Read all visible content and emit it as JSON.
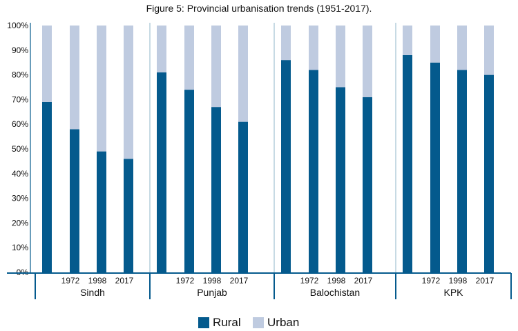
{
  "chart_data": {
    "type": "bar",
    "stacked": true,
    "title": "Figure 5: Provincial urbanisation trends (1951-2017).",
    "ylim": [
      0,
      100
    ],
    "y_ticks": [
      "0%",
      "10%",
      "20%",
      "30%",
      "40%",
      "50%",
      "60%",
      "70%",
      "80%",
      "90%",
      "100%"
    ],
    "bars_per_group": 4,
    "year_labels": [
      "",
      "1972",
      "1998",
      "2017"
    ],
    "groups": [
      "Sindh",
      "Punjab",
      "Balochistan",
      "KPK"
    ],
    "series": [
      {
        "name": "Rural",
        "color": "#045a8d",
        "values": [
          [
            69,
            58,
            49,
            46
          ],
          [
            81,
            74,
            67,
            61
          ],
          [
            86,
            82,
            75,
            71
          ],
          [
            88,
            85,
            82,
            80
          ]
        ]
      },
      {
        "name": "Urban",
        "color": "#bfcbe0",
        "values": [
          [
            31,
            42,
            51,
            54
          ],
          [
            19,
            26,
            33,
            39
          ],
          [
            14,
            18,
            25,
            29
          ],
          [
            12,
            15,
            18,
            20
          ]
        ]
      }
    ],
    "axis_color": "#045a8d",
    "separator_color": "#8fb6c9",
    "legend_position": "bottom",
    "grid": false
  }
}
